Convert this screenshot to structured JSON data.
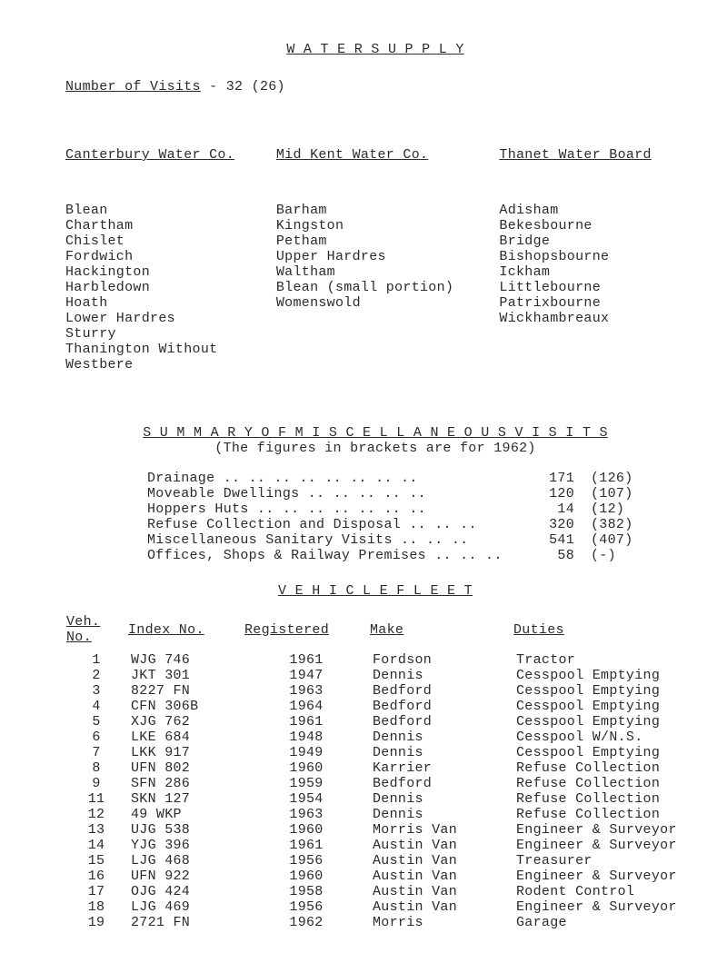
{
  "title": "W A T E R   S U P P L Y",
  "numVisitsLine": {
    "label": "Number of Visits",
    "value": "- 32 (26)"
  },
  "cols": {
    "col1": {
      "head": "Canterbury Water Co.",
      "items": [
        "Blean",
        "Chartham",
        "Chislet",
        "Fordwich",
        "Hackington",
        "Harbledown",
        "Hoath",
        "Lower Hardres",
        "Sturry",
        "Thanington Without",
        "Westbere"
      ]
    },
    "col2": {
      "head": "Mid Kent Water Co.",
      "items": [
        "Barham",
        "Kingston",
        "Petham",
        "Upper Hardres",
        "Waltham",
        "Blean (small portion)",
        "Womenswold"
      ]
    },
    "col3": {
      "head": "Thanet Water Board",
      "items": [
        "Adisham",
        "Bekesbourne",
        "Bridge",
        "Bishopsbourne",
        "Ickham",
        "Littlebourne",
        "Patrixbourne",
        "Wickhambreaux"
      ]
    }
  },
  "summary": {
    "line1": "S U M M A R Y   O F   M I S C E L L A N E O U S   V I S I T S",
    "line2": "(The figures in brackets are for 1962)"
  },
  "stats": [
    {
      "label": "Drainage .. .. .. .. .. .. .. ..",
      "n": "171",
      "b": "(126)"
    },
    {
      "label": "Moveable Dwellings      .. .. .. .. ..",
      "n": "120",
      "b": "(107)"
    },
    {
      "label": "Hoppers Huts .. .. .. .. .. .. ..",
      "n": "14",
      "b": "(12)"
    },
    {
      "label": "Refuse Collection and Disposal    .. .. ..",
      "n": "320",
      "b": "(382)"
    },
    {
      "label": "Miscellaneous Sanitary Visits     .. .. ..",
      "n": "541",
      "b": "(407)"
    },
    {
      "label": "Offices, Shops & Railway Premises .. .. ..",
      "n": "58",
      "b": "(-)"
    }
  ],
  "vehicleTitle": "V E H I C L E   F L E E T",
  "vehHeaders": {
    "c1": "Veh. No.",
    "c2": "Index No.",
    "c3": "Registered",
    "c4": "Make",
    "c5": "Duties"
  },
  "vehicles": [
    {
      "n": "1",
      "idx": "WJG 746",
      "reg": "1961",
      "make": "Fordson",
      "duty": "Tractor"
    },
    {
      "n": "2",
      "idx": "JKT 301",
      "reg": "1947",
      "make": "Dennis",
      "duty": "Cesspool Emptying"
    },
    {
      "n": "3",
      "idx": "8227 FN",
      "reg": "1963",
      "make": "Bedford",
      "duty": "Cesspool Emptying"
    },
    {
      "n": "4",
      "idx": "CFN 306B",
      "reg": "1964",
      "make": "Bedford",
      "duty": "Cesspool Emptying"
    },
    {
      "n": "5",
      "idx": "XJG 762",
      "reg": "1961",
      "make": "Bedford",
      "duty": "Cesspool Emptying"
    },
    {
      "n": "6",
      "idx": "LKE 684",
      "reg": "1948",
      "make": "Dennis",
      "duty": "Cesspool W/N.S."
    },
    {
      "n": "7",
      "idx": "LKK 917",
      "reg": "1949",
      "make": "Dennis",
      "duty": "Cesspool Emptying"
    },
    {
      "n": "8",
      "idx": "UFN 802",
      "reg": "1960",
      "make": "Karrier",
      "duty": "Refuse Collection"
    },
    {
      "n": "9",
      "idx": "SFN 286",
      "reg": "1959",
      "make": "Bedford",
      "duty": "Refuse Collection"
    },
    {
      "n": "11",
      "idx": "SKN 127",
      "reg": "1954",
      "make": "Dennis",
      "duty": "Refuse Collection"
    },
    {
      "n": "12",
      "idx": "49 WKP",
      "reg": "1963",
      "make": "Dennis",
      "duty": "Refuse Collection"
    },
    {
      "n": "13",
      "idx": "UJG 538",
      "reg": "1960",
      "make": "Morris Van",
      "duty": "Engineer & Surveyor"
    },
    {
      "n": "14",
      "idx": "YJG 396",
      "reg": "1961",
      "make": "Austin Van",
      "duty": "Engineer & Surveyor"
    },
    {
      "n": "15",
      "idx": "LJG 468",
      "reg": "1956",
      "make": "Austin Van",
      "duty": "Treasurer"
    },
    {
      "n": "16",
      "idx": "UFN 922",
      "reg": "1960",
      "make": "Austin Van",
      "duty": "Engineer & Surveyor"
    },
    {
      "n": "17",
      "idx": "OJG 424",
      "reg": "1958",
      "make": "Austin Van",
      "duty": "Rodent Control"
    },
    {
      "n": "18",
      "idx": "LJG 469",
      "reg": "1956",
      "make": "Austin Van",
      "duty": "Engineer & Surveyor"
    },
    {
      "n": "19",
      "idx": "2721 FN",
      "reg": "1962",
      "make": "Morris",
      "duty": "Garage"
    }
  ]
}
